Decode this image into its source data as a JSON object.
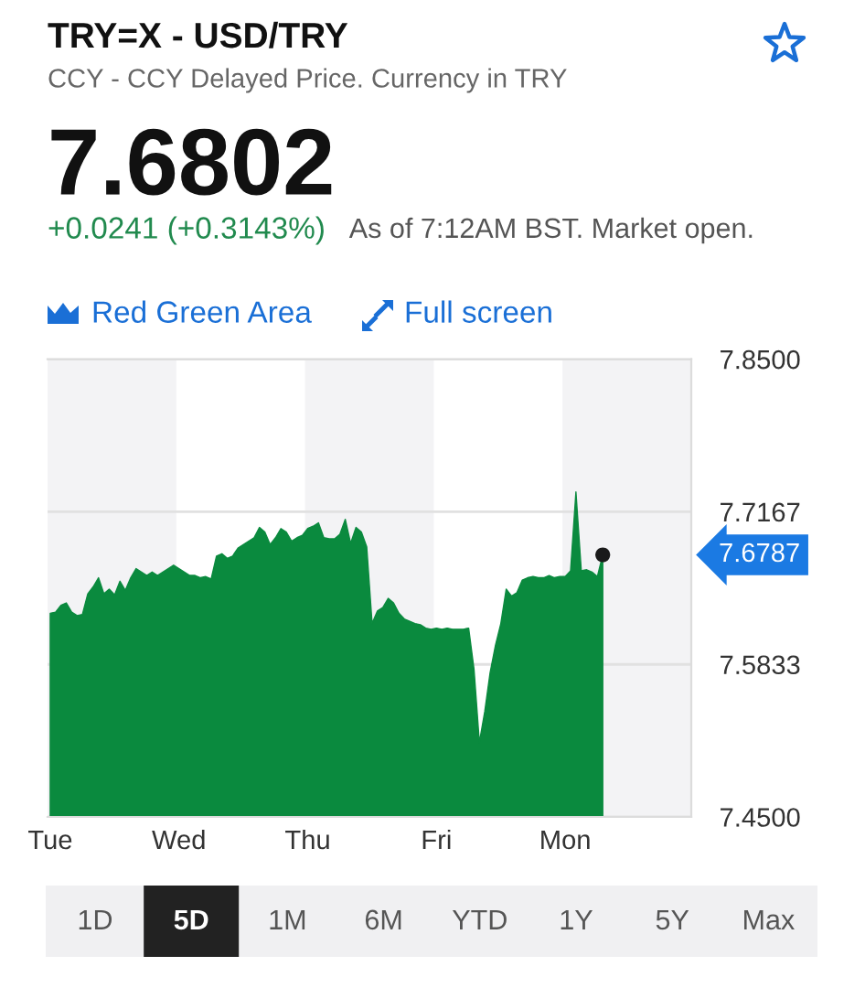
{
  "chart_data": {
    "type": "area",
    "title": "TRY=X - USD/TRY",
    "subtitle": "CCY - CCY Delayed Price. Currency in TRY",
    "annotations": [
      "7.6802",
      "+0.0241 (+0.3143%)",
      "As of 7:12AM BST. Market open.",
      "Red Green Area",
      "Full screen",
      "1D",
      "5D",
      "1M",
      "6M",
      "YTD",
      "1Y",
      "5Y",
      "Max",
      "7.6787"
    ],
    "categories": [
      "Tue",
      null,
      null,
      null,
      null,
      null,
      null,
      null,
      null,
      null,
      null,
      null,
      null,
      null,
      null,
      null,
      null,
      null,
      null,
      null,
      null,
      null,
      null,
      null,
      "Wed",
      null,
      null,
      null,
      null,
      null,
      null,
      null,
      null,
      null,
      null,
      null,
      null,
      null,
      null,
      null,
      null,
      null,
      null,
      null,
      null,
      null,
      null,
      null,
      "Thu",
      null,
      null,
      null,
      null,
      null,
      null,
      null,
      null,
      null,
      null,
      null,
      null,
      null,
      null,
      null,
      null,
      null,
      null,
      null,
      null,
      null,
      null,
      null,
      "Fri",
      null,
      null,
      null,
      null,
      null,
      null,
      null,
      null,
      null,
      null,
      null,
      null,
      null,
      null,
      null,
      null,
      null,
      null,
      null,
      null,
      null,
      null,
      null,
      "Mon",
      null,
      null,
      null,
      null,
      null,
      null,
      null,
      null,
      null,
      null,
      null,
      null,
      null,
      null,
      null,
      null,
      null,
      null,
      null,
      null,
      null,
      null,
      null
    ],
    "ylim": [
      7.45,
      7.85
    ],
    "yticks": [
      {
        "value": 7.85,
        "label": "7.8500"
      },
      7.7167,
      7.5833,
      {
        "value": 7.45,
        "label": "7.4500"
      }
    ],
    "grid": "y",
    "bands": [
      {
        "axis": "x",
        "from": "Wed",
        "to": "Thu",
        "color": "#ffffff"
      },
      {
        "axis": "x",
        "from": "Fri",
        "to": "Mon",
        "color": "#ffffff"
      }
    ],
    "series": [
      {
        "color": "#0a8a3e",
        "values": [
          7.628,
          7.629,
          7.635,
          7.637,
          7.629,
          7.626,
          7.627,
          7.645,
          7.651,
          7.659,
          7.645,
          7.649,
          7.644,
          7.656,
          7.648,
          7.659,
          7.667,
          7.664,
          7.661,
          7.664,
          7.661,
          7.664,
          7.667,
          7.67,
          7.667,
          7.664,
          7.661,
          7.661,
          7.659,
          7.66,
          7.658,
          7.678,
          7.68,
          7.676,
          7.678,
          7.685,
          7.688,
          7.691,
          7.694,
          7.703,
          7.699,
          7.688,
          7.694,
          7.702,
          7.699,
          7.691,
          7.694,
          7.696,
          7.702,
          7.704,
          7.707,
          7.694,
          7.693,
          7.693,
          7.697,
          7.71,
          7.689,
          7.703,
          7.699,
          7.686,
          7.619,
          7.63,
          7.633,
          7.641,
          7.637,
          7.628,
          7.623,
          7.621,
          7.619,
          7.618,
          7.615,
          7.614,
          7.615,
          7.614,
          7.615,
          7.614,
          7.614,
          7.614,
          7.615,
          7.579,
          7.515,
          7.542,
          7.576,
          7.6,
          7.619,
          7.649,
          7.643,
          7.646,
          7.657,
          7.659,
          7.66,
          7.659,
          7.659,
          7.661,
          7.659,
          7.66,
          7.66,
          7.665,
          7.734,
          7.665,
          7.666,
          7.664,
          7.66,
          7.679,
          null,
          null,
          null,
          null,
          null,
          null,
          null,
          null,
          null,
          null,
          null,
          null,
          null,
          null,
          null,
          null
        ]
      },
      {
        "type": "scatter",
        "color": "#1a1a1a",
        "marker": "circle",
        "values": [
          null,
          null,
          null,
          null,
          null,
          null,
          null,
          null,
          null,
          null,
          null,
          null,
          null,
          null,
          null,
          null,
          null,
          null,
          null,
          null,
          null,
          null,
          null,
          null,
          null,
          null,
          null,
          null,
          null,
          null,
          null,
          null,
          null,
          null,
          null,
          null,
          null,
          null,
          null,
          null,
          null,
          null,
          null,
          null,
          null,
          null,
          null,
          null,
          null,
          null,
          null,
          null,
          null,
          null,
          null,
          null,
          null,
          null,
          null,
          null,
          null,
          null,
          null,
          null,
          null,
          null,
          null,
          null,
          null,
          null,
          null,
          null,
          null,
          null,
          null,
          null,
          null,
          null,
          null,
          null,
          null,
          null,
          null,
          null,
          null,
          null,
          null,
          null,
          null,
          null,
          null,
          null,
          null,
          null,
          null,
          null,
          null,
          null,
          null,
          null,
          null,
          null,
          null,
          7.679,
          null,
          null,
          null,
          null,
          null,
          null,
          null,
          null,
          null,
          null,
          null,
          null,
          null,
          null,
          null,
          null
        ]
      }
    ]
  }
}
